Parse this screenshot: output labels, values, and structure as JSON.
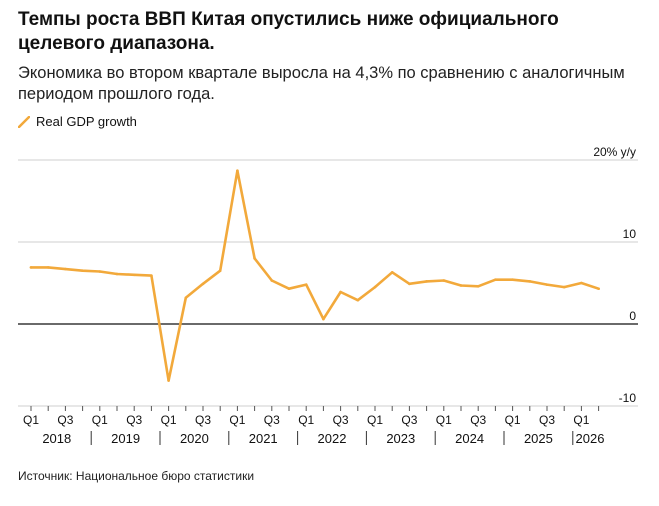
{
  "header": {
    "title": "Темпы роста ВВП Китая опустились ниже официального целевого диапазона.",
    "subtitle": "Экономика во втором квартале выросла на 4,3% по сравнению с аналогичным периодом прошлого года."
  },
  "footer": {
    "source": "Источник: Национальное бюро статистики"
  },
  "chart_data": {
    "type": "line",
    "title": "",
    "xlabel": "",
    "ylabel": "",
    "line_color": "#f2a93b",
    "y_unit_label": "% y/y",
    "ylim": [
      -10,
      20
    ],
    "y_ticks": [
      20,
      10,
      0,
      -10
    ],
    "y_tick_labels": [
      "20% y/y",
      "10",
      "0",
      "-10"
    ],
    "grid": true,
    "legend_position": "top-left",
    "series": [
      {
        "name": "Real GDP growth",
        "x": [
          "2018 Q1",
          "2018 Q2",
          "2018 Q3",
          "2018 Q4",
          "2019 Q1",
          "2019 Q2",
          "2019 Q3",
          "2019 Q4",
          "2020 Q1",
          "2020 Q2",
          "2020 Q3",
          "2020 Q4",
          "2021 Q1",
          "2021 Q2",
          "2021 Q3",
          "2021 Q4",
          "2022 Q1",
          "2022 Q2",
          "2022 Q3",
          "2022 Q4",
          "2023 Q1",
          "2023 Q2",
          "2023 Q3",
          "2023 Q4",
          "2024 Q1",
          "2024 Q2",
          "2024 Q3",
          "2024 Q4",
          "2025 Q1",
          "2025 Q2",
          "2025 Q3",
          "2025 Q4",
          "2026 Q1",
          "2026 Q2"
        ],
        "values": [
          6.9,
          6.9,
          6.7,
          6.5,
          6.4,
          6.1,
          6.0,
          5.9,
          -6.9,
          3.2,
          4.9,
          6.5,
          18.7,
          8.0,
          5.3,
          4.3,
          4.8,
          0.6,
          3.9,
          2.9,
          4.5,
          6.3,
          4.9,
          5.2,
          5.3,
          4.7,
          4.6,
          5.4,
          5.4,
          5.2,
          4.8,
          4.5,
          5.0,
          4.3
        ]
      }
    ],
    "x_tick_labels": [
      "Q1",
      "Q3",
      "Q1",
      "Q3",
      "Q1",
      "Q3",
      "Q1",
      "Q3",
      "Q1",
      "Q3",
      "Q1",
      "Q3",
      "Q1",
      "Q3",
      "Q1",
      "Q3",
      "Q1"
    ],
    "years": [
      "2018",
      "2019",
      "2020",
      "2021",
      "2022",
      "2023",
      "2024",
      "2025",
      "2026"
    ]
  }
}
